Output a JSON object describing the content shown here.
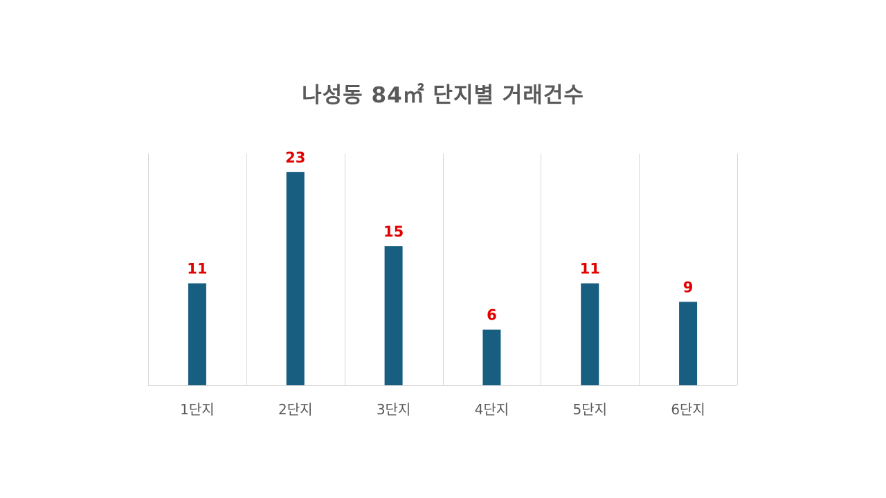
{
  "chart_data": {
    "type": "bar",
    "title": "나성동 84㎡ 단지별 거래건수",
    "categories": [
      "1단지",
      "2단지",
      "3단지",
      "4단지",
      "5단지",
      "6단지"
    ],
    "values": [
      11,
      23,
      15,
      6,
      11,
      9
    ],
    "xlabel": "",
    "ylabel": "",
    "ylim": [
      0,
      25
    ],
    "grid": "vertical category separators",
    "legend": "none",
    "bar_color": "#175E80",
    "data_label_color": "#E00000",
    "gridline_color": "#D9D9D9",
    "tick_label_color": "#595959"
  }
}
